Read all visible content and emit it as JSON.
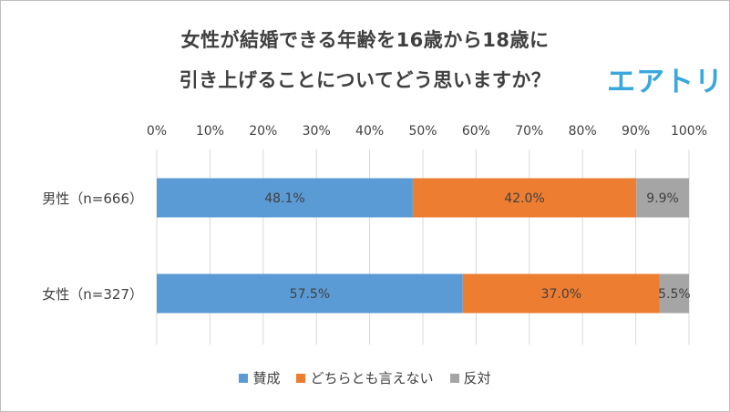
{
  "chart_data": {
    "type": "bar",
    "orientation": "horizontal",
    "stacked": true,
    "title_lines": [
      "女性が結婚できる年齢を16歳から18歳に",
      "引き上げることについてどう思いますか？"
    ],
    "logo_text": "エアトリ",
    "categories": [
      "男性（n=666）",
      "女性（n=327）"
    ],
    "series": [
      {
        "name": "賛成",
        "color": "#5b9bd5",
        "values": [
          48.1,
          57.5
        ],
        "labels": [
          "48.1%",
          "57.5%"
        ]
      },
      {
        "name": "どちらとも言えない",
        "color": "#ed7d31",
        "values": [
          42.0,
          37.0
        ],
        "labels": [
          "42.0%",
          "37.0%"
        ]
      },
      {
        "name": "反対",
        "color": "#a5a5a5",
        "values": [
          9.9,
          5.5
        ],
        "labels": [
          "9.9%",
          "5.5%"
        ]
      }
    ],
    "xlim": [
      0,
      100
    ],
    "xticks": [
      0,
      10,
      20,
      30,
      40,
      50,
      60,
      70,
      80,
      90,
      100
    ],
    "xtick_labels": [
      "0%",
      "10%",
      "20%",
      "30%",
      "40%",
      "50%",
      "60%",
      "70%",
      "80%",
      "90%",
      "100%"
    ],
    "grid": true,
    "legend_position": "bottom"
  }
}
